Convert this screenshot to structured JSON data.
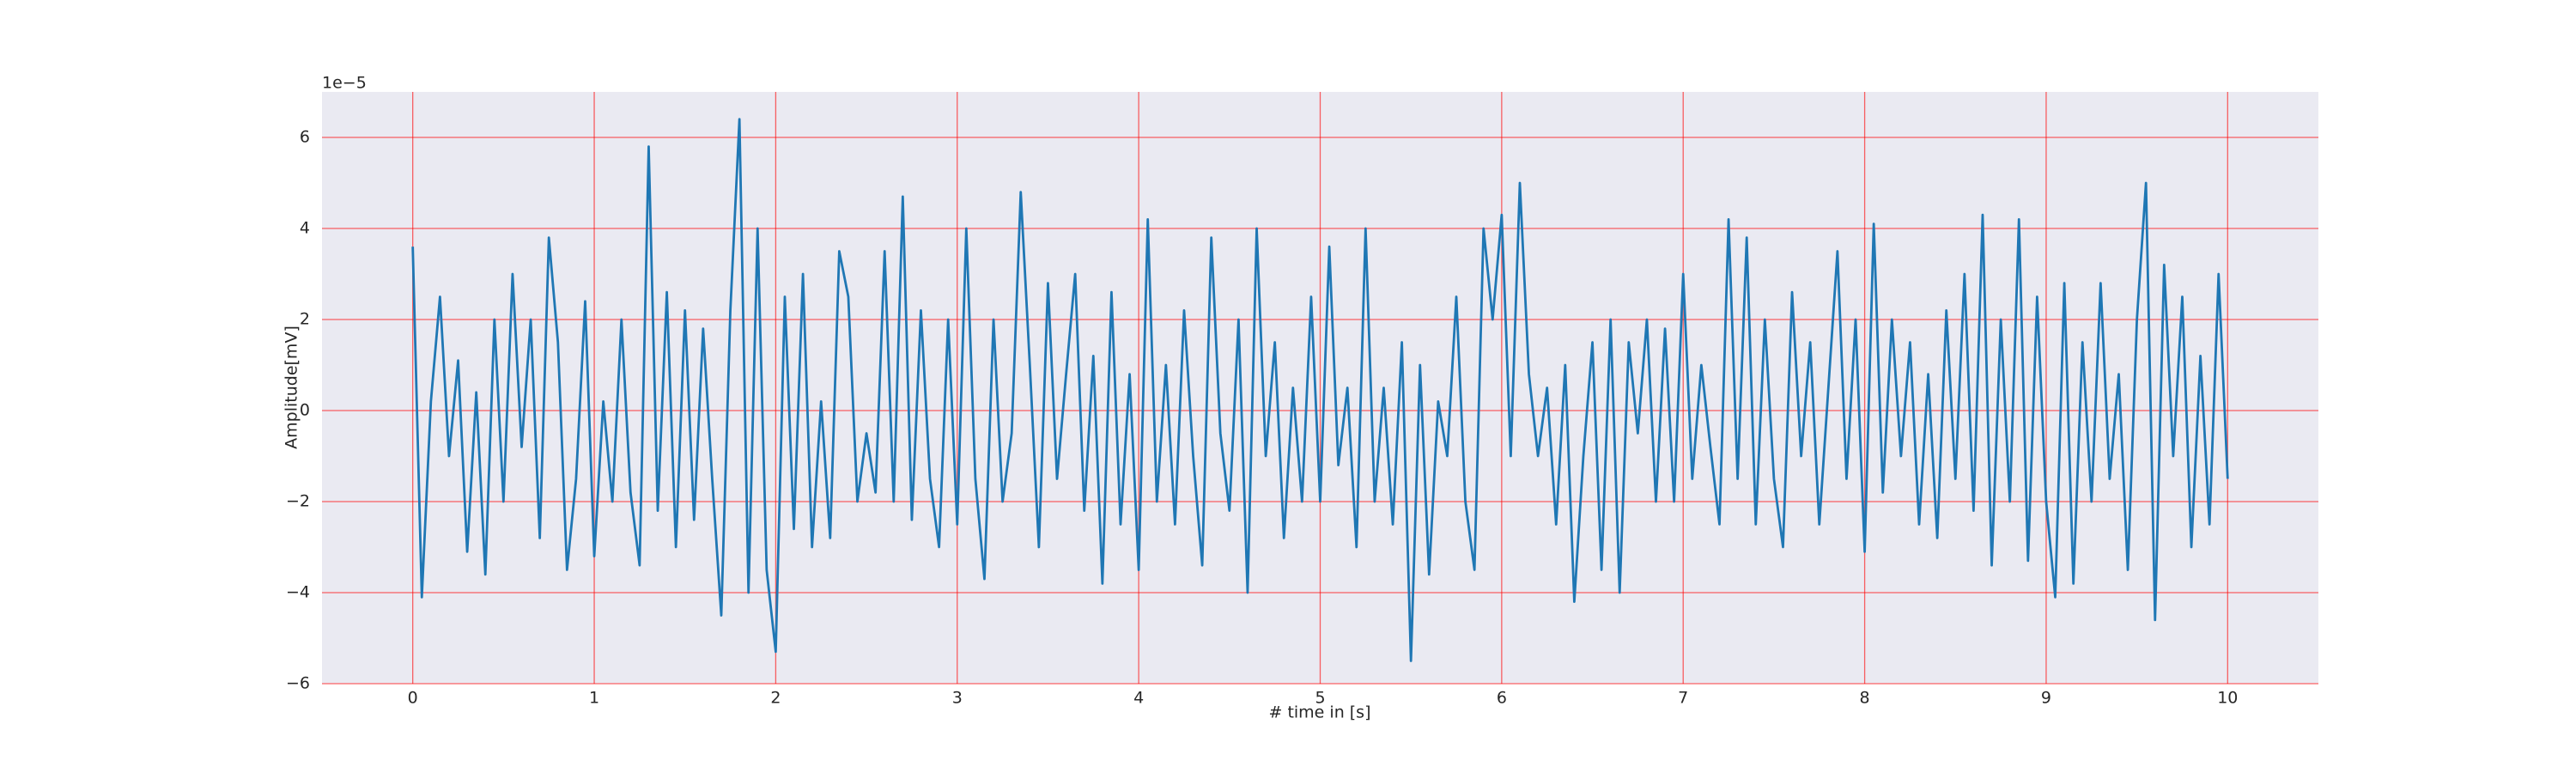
{
  "chart_data": {
    "type": "line",
    "xlabel": "# time in [s]",
    "ylabel": "Amplitude[mV]",
    "y_offset_label": "1e−5",
    "color": "#1f77b4",
    "grid": true,
    "grid_color": "#ff0000",
    "xlim": [
      -0.5,
      10.5
    ],
    "xticks": [
      0,
      1,
      2,
      3,
      4,
      5,
      6,
      7,
      8,
      9,
      10
    ],
    "ylim": [
      -6,
      7
    ],
    "yticks": [
      {
        "value": -6,
        "label": "−6"
      },
      {
        "value": -4,
        "label": "−4"
      },
      {
        "value": -2,
        "label": "−2"
      },
      0,
      2,
      4,
      6
    ],
    "x": [
      0,
      0.05,
      0.1,
      0.15,
      0.2,
      0.25,
      0.3,
      0.35,
      0.4,
      0.45,
      0.5,
      0.55,
      0.6,
      0.65,
      0.7,
      0.75,
      0.8,
      0.85,
      0.9,
      0.95,
      1,
      1.05,
      1.1,
      1.15,
      1.2,
      1.25,
      1.3,
      1.35,
      1.4,
      1.45,
      1.5,
      1.55,
      1.6,
      1.65,
      1.7,
      1.75,
      1.8,
      1.85,
      1.9,
      1.95,
      2,
      2.05,
      2.1,
      2.15,
      2.2,
      2.25,
      2.3,
      2.35,
      2.4,
      2.45,
      2.5,
      2.55,
      2.6,
      2.65,
      2.7,
      2.75,
      2.8,
      2.85,
      2.9,
      2.95,
      3,
      3.05,
      3.1,
      3.15,
      3.2,
      3.25,
      3.3,
      3.35,
      3.4,
      3.45,
      3.5,
      3.55,
      3.6,
      3.65,
      3.7,
      3.75,
      3.8,
      3.85,
      3.9,
      3.95,
      4,
      4.05,
      4.1,
      4.15,
      4.2,
      4.25,
      4.3,
      4.35,
      4.4,
      4.45,
      4.5,
      4.55,
      4.6,
      4.65,
      4.7,
      4.75,
      4.8,
      4.85,
      4.9,
      4.95,
      5,
      5.05,
      5.1,
      5.15,
      5.2,
      5.25,
      5.3,
      5.35,
      5.4,
      5.45,
      5.5,
      5.55,
      5.6,
      5.65,
      5.7,
      5.75,
      5.8,
      5.85,
      5.9,
      5.95,
      6,
      6.05,
      6.1,
      6.15,
      6.2,
      6.25,
      6.3,
      6.35,
      6.4,
      6.45,
      6.5,
      6.55,
      6.6,
      6.65,
      6.7,
      6.75,
      6.8,
      6.85,
      6.9,
      6.95,
      7,
      7.05,
      7.1,
      7.15,
      7.2,
      7.25,
      7.3,
      7.35,
      7.4,
      7.45,
      7.5,
      7.55,
      7.6,
      7.65,
      7.7,
      7.75,
      7.8,
      7.85,
      7.9,
      7.95,
      8,
      8.05,
      8.1,
      8.15,
      8.2,
      8.25,
      8.3,
      8.35,
      8.4,
      8.45,
      8.5,
      8.55,
      8.6,
      8.65,
      8.7,
      8.75,
      8.8,
      8.85,
      8.9,
      8.95,
      9,
      9.05,
      9.1,
      9.15,
      9.2,
      9.25,
      9.3,
      9.35,
      9.4,
      9.45,
      9.5,
      9.55,
      9.6,
      9.65,
      9.7,
      9.75,
      9.8,
      9.85,
      9.9,
      9.95,
      10
    ],
    "values": [
      3.6,
      -4.1,
      0.2,
      2.5,
      -1.0,
      1.1,
      -3.1,
      0.4,
      -3.6,
      2.0,
      -2.0,
      3.0,
      -0.8,
      2.0,
      -2.8,
      3.8,
      1.5,
      -3.5,
      -1.5,
      2.4,
      -3.2,
      0.2,
      -2.0,
      2.0,
      -1.8,
      -3.4,
      5.8,
      -2.2,
      2.6,
      -3.0,
      2.2,
      -2.4,
      1.8,
      -1.5,
      -4.5,
      2.2,
      6.4,
      -4.0,
      4.0,
      -3.5,
      -5.3,
      2.5,
      -2.6,
      3.0,
      -3.0,
      0.2,
      -2.8,
      3.5,
      2.5,
      -2.0,
      -0.5,
      -1.8,
      3.5,
      -2.0,
      4.7,
      -2.4,
      2.2,
      -1.5,
      -3.0,
      2.0,
      -2.5,
      4.0,
      -1.5,
      -3.7,
      2.0,
      -2.0,
      -0.5,
      4.8,
      1.0,
      -3.0,
      2.8,
      -1.5,
      0.8,
      3.0,
      -2.2,
      1.2,
      -3.8,
      2.6,
      -2.5,
      0.8,
      -3.5,
      4.2,
      -2.0,
      1.0,
      -2.5,
      2.2,
      -1.0,
      -3.4,
      3.8,
      -0.5,
      -2.2,
      2.0,
      -4.0,
      4.0,
      -1.0,
      1.5,
      -2.8,
      0.5,
      -2.0,
      2.5,
      -2.0,
      3.6,
      -1.2,
      0.5,
      -3.0,
      4.0,
      -2.0,
      0.5,
      -2.5,
      1.5,
      -5.5,
      1.0,
      -3.6,
      0.2,
      -1.0,
      2.5,
      -2.0,
      -3.5,
      4.0,
      2.0,
      4.3,
      -1.0,
      5.0,
      0.8,
      -1.0,
      0.5,
      -2.5,
      1.0,
      -4.2,
      -1.0,
      1.5,
      -3.5,
      2.0,
      -4.0,
      1.5,
      -0.5,
      2.0,
      -2.0,
      1.8,
      -2.0,
      3.0,
      -1.5,
      1.0,
      -0.8,
      -2.5,
      4.2,
      -1.5,
      3.8,
      -2.5,
      2.0,
      -1.5,
      -3.0,
      2.6,
      -1.0,
      1.5,
      -2.5,
      0.5,
      3.5,
      -1.5,
      2.0,
      -3.1,
      4.1,
      -1.8,
      2.0,
      -1.0,
      1.5,
      -2.5,
      0.8,
      -2.8,
      2.2,
      -1.5,
      3.0,
      -2.2,
      4.3,
      -3.4,
      2.0,
      -2.0,
      4.2,
      -3.3,
      2.5,
      -2.0,
      -4.1,
      2.8,
      -3.8,
      1.5,
      -2.0,
      2.8,
      -1.5,
      0.8,
      -3.5,
      2.0,
      5.0,
      -4.6,
      3.2,
      -1.0,
      2.5,
      -3.0,
      1.2,
      -2.5,
      3.0,
      -1.5
    ]
  }
}
